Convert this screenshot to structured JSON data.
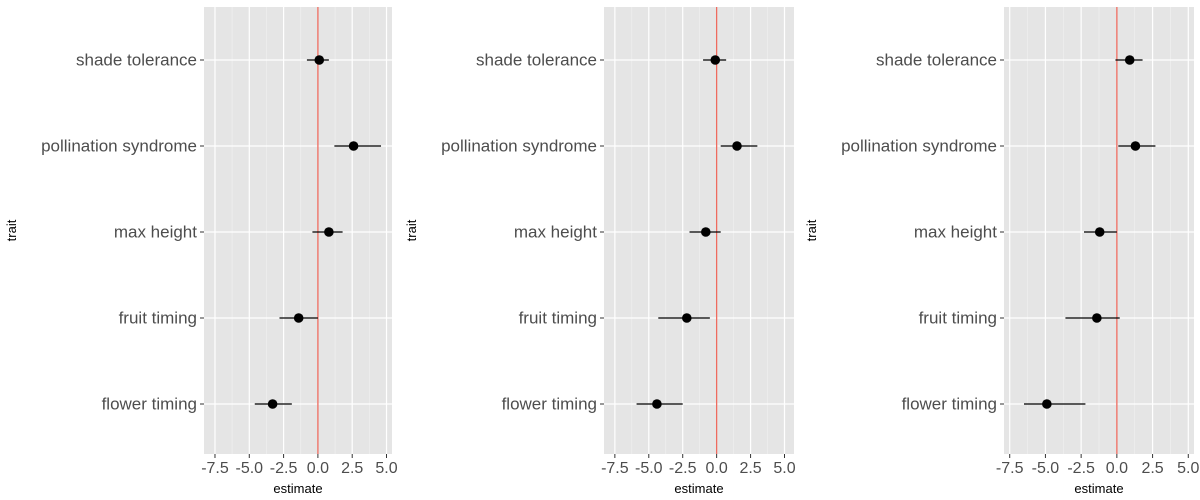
{
  "chart_data": [
    {
      "type": "scatter",
      "xlabel": "estimate",
      "ylabel": "trait",
      "xlim": [
        -8.3,
        5.4
      ],
      "x_ticks": [
        -7.5,
        -5.0,
        -2.5,
        0.0,
        2.5,
        5.0
      ],
      "x_tick_labels": [
        "-7.5",
        "-5.0",
        "-2.5",
        "0.0",
        "2.5",
        "5.0"
      ],
      "reference_line": 0,
      "grid": true,
      "categories": [
        "shade tolerance",
        "pollination syndrome",
        "max height",
        "fruit timing",
        "flower timing"
      ],
      "estimates": [
        0.1,
        2.6,
        0.8,
        -1.4,
        -3.3
      ],
      "lower": [
        -0.8,
        1.2,
        -0.4,
        -2.8,
        -4.6
      ],
      "upper": [
        0.8,
        4.6,
        1.8,
        0.0,
        -1.9
      ]
    },
    {
      "type": "scatter",
      "xlabel": "estimate",
      "ylabel": "trait",
      "xlim": [
        -8.3,
        5.7
      ],
      "x_ticks": [
        -7.5,
        -5.0,
        -2.5,
        0.0,
        2.5,
        5.0
      ],
      "x_tick_labels": [
        "-7.5",
        "-5.0",
        "-2.5",
        "0.0",
        "2.5",
        "5.0"
      ],
      "reference_line": 0,
      "grid": true,
      "categories": [
        "shade tolerance",
        "pollination syndrome",
        "max height",
        "fruit timing",
        "flower timing"
      ],
      "estimates": [
        -0.1,
        1.5,
        -0.8,
        -2.2,
        -4.4
      ],
      "lower": [
        -1.0,
        0.3,
        -2.0,
        -4.3,
        -5.9
      ],
      "upper": [
        0.7,
        3.0,
        0.3,
        -0.5,
        -2.5
      ]
    },
    {
      "type": "scatter",
      "xlabel": "estimate",
      "ylabel": "trait",
      "xlim": [
        -7.9,
        5.4
      ],
      "x_ticks": [
        -7.5,
        -5.0,
        -2.5,
        0.0,
        2.5,
        5.0
      ],
      "x_tick_labels": [
        "-7.5",
        "-5.0",
        "-2.5",
        "0.0",
        "2.5",
        "5.0"
      ],
      "reference_line": 0,
      "grid": true,
      "categories": [
        "shade tolerance",
        "pollination syndrome",
        "max height",
        "fruit timing",
        "flower timing"
      ],
      "estimates": [
        0.9,
        1.3,
        -1.2,
        -1.4,
        -4.9
      ],
      "lower": [
        -0.1,
        0.1,
        -2.3,
        -3.6,
        -6.5
      ],
      "upper": [
        1.8,
        2.7,
        0.0,
        0.2,
        -2.2
      ]
    }
  ]
}
